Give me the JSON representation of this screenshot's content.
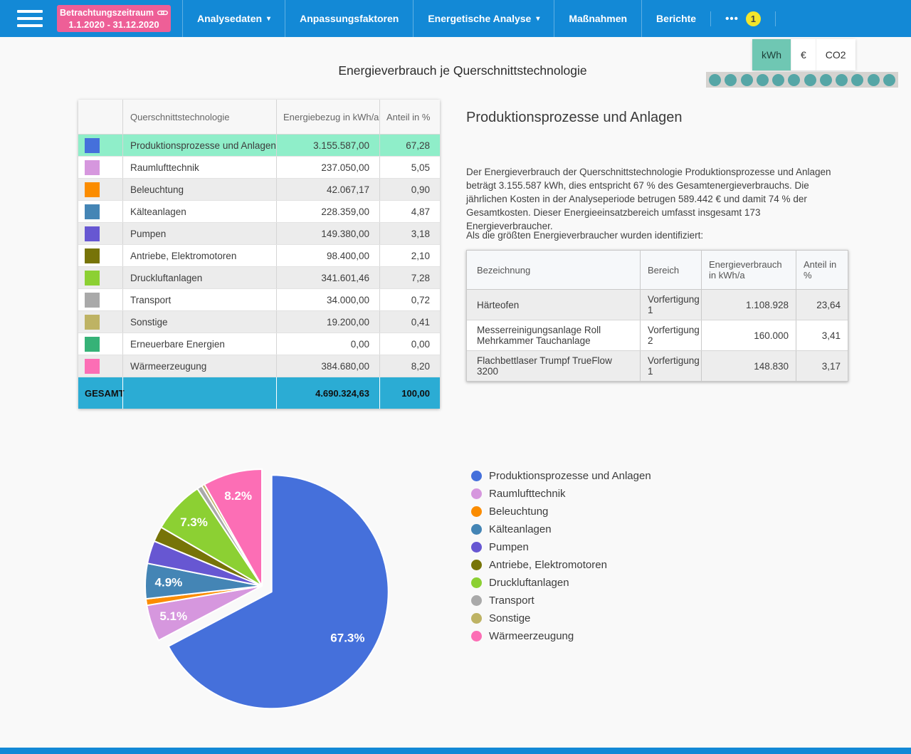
{
  "nav": {
    "badge": {
      "line1": "Betrachtungszeitraum",
      "line2": "1.1.2020 - 31.12.2020"
    },
    "items": [
      {
        "label": "Analysedaten",
        "dropdown": true
      },
      {
        "label": "Anpassungsfaktoren",
        "dropdown": false
      },
      {
        "label": "Energetische Analyse",
        "dropdown": true
      },
      {
        "label": "Maßnahmen",
        "dropdown": false
      },
      {
        "label": "Berichte",
        "dropdown": false
      }
    ],
    "more_label": "•••",
    "more_badge": "1"
  },
  "unit_toggle": {
    "options": [
      "kWh",
      "€",
      "CO2"
    ],
    "selected": "kWh"
  },
  "dots": {
    "count": 12
  },
  "title": "Energieverbrauch je Querschnittstechnologie",
  "main_table": {
    "headers": [
      "Querschnittstechnologie",
      "Energiebezug in kWh/a",
      "Anteil in %"
    ],
    "rows": [
      {
        "color": "#4570db",
        "name": "Produktionsprozesse und Anlagen",
        "energy": "3.155.587,00",
        "share": "67,28",
        "highlighted": true
      },
      {
        "color": "#d697de",
        "name": "Raumlufttechnik",
        "energy": "237.050,00",
        "share": "5,05"
      },
      {
        "color": "#fb8c00",
        "name": "Beleuchtung",
        "energy": "42.067,17",
        "share": "0,90"
      },
      {
        "color": "#4485b5",
        "name": "Kälteanlagen",
        "energy": "228.359,00",
        "share": "4,87"
      },
      {
        "color": "#6757d2",
        "name": "Pumpen",
        "energy": "149.380,00",
        "share": "3,18"
      },
      {
        "color": "#777408",
        "name": "Antriebe, Elektromotoren",
        "energy": "98.400,00",
        "share": "2,10"
      },
      {
        "color": "#8cd033",
        "name": "Druckluftanlagen",
        "energy": "341.601,46",
        "share": "7,28"
      },
      {
        "color": "#a9a9a9",
        "name": "Transport",
        "energy": "34.000,00",
        "share": "0,72"
      },
      {
        "color": "#beb364",
        "name": "Sonstige",
        "energy": "19.200,00",
        "share": "0,41"
      },
      {
        "color": "#36b277",
        "name": "Erneuerbare Energien",
        "energy": "0,00",
        "share": "0,00"
      },
      {
        "color": "#fc6eb5",
        "name": "Wärmeerzeugung",
        "energy": "384.680,00",
        "share": "8,20"
      }
    ],
    "footer": {
      "label": "GESAMT",
      "energy": "4.690.324,63",
      "share": "100,00"
    }
  },
  "detail": {
    "heading": "Produktionsprozesse und Anlagen",
    "paragraph": "Der Energieverbrauch der Querschnittstechnologie Produktionsprozesse und Anlagen beträgt 3.155.587 kWh, dies entspricht 67 % des Gesamtenergieverbrauchs. Die jährlichen Kosten in der Analyseperiode betrugen 589.442 € und damit 74 % der Gesamtkosten. Dieser Energieeinsatzbereich umfasst insgesamt 173 Energieverbraucher.",
    "intro2": "Als die größten Energieverbraucher wurden identifiziert:",
    "table": {
      "headers": [
        "Bezeichnung",
        "Bereich",
        "Energieverbrauch in kWh/a",
        "Anteil in %"
      ],
      "rows": [
        {
          "name": "Härteofen",
          "area": "Vorfertigung 1",
          "energy": "1.108.928",
          "share": "23,64"
        },
        {
          "name": "Messerreinigungsanlage Roll Mehrkammer Tauchanlage",
          "area": "Vorfertigung 2",
          "energy": "160.000",
          "share": "3,41"
        },
        {
          "name": "Flachbettlaser Trumpf TrueFlow 3200",
          "area": "Vorfertigung 1",
          "energy": "148.830",
          "share": "3,17"
        }
      ]
    }
  },
  "chart_data": {
    "type": "pie",
    "categories": [
      "Produktionsprozesse und Anlagen",
      "Raumlufttechnik",
      "Beleuchtung",
      "Kälteanlagen",
      "Pumpen",
      "Antriebe, Elektromotoren",
      "Druckluftanlagen",
      "Transport",
      "Sonstige",
      "Wärmeerzeugung"
    ],
    "values": [
      67.28,
      5.05,
      0.9,
      4.87,
      3.18,
      2.1,
      7.28,
      0.72,
      0.41,
      8.2
    ],
    "colors": [
      "#4570db",
      "#d697de",
      "#fb8c00",
      "#4485b5",
      "#6757d2",
      "#777408",
      "#8cd033",
      "#a9a9a9",
      "#beb364",
      "#fc6eb5"
    ],
    "shown_labels": [
      "67.3%",
      "5.1%",
      "4.9%",
      "7.3%",
      "8.2%"
    ],
    "exploded_slice": "Produktionsprozesse und Anlagen",
    "start_angle_deg": 0,
    "direction": "clockwise",
    "legend_position": "right"
  },
  "colors": {
    "appbar_blue": "#1389d6",
    "badge_pink": "#ee5f97",
    "notification_yellow": "#f3e52b",
    "toggle_active_teal": "#6fc7b3",
    "dot_teal": "#55a6a6",
    "dot_strip_bg": "#d5d3d0",
    "highlight_row_green": "#8feec9",
    "total_row_cyan": "#2bacd4",
    "page_bg": "#f9f9f9"
  }
}
